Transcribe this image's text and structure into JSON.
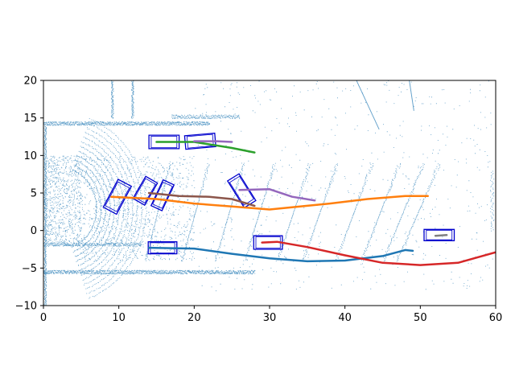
{
  "chart_data": {
    "type": "scatter",
    "title": "",
    "xlabel": "",
    "ylabel": "",
    "xlim": [
      0,
      60
    ],
    "ylim": [
      -10,
      20
    ],
    "x_ticks": [
      0,
      10,
      20,
      30,
      40,
      50,
      60
    ],
    "y_ticks": [
      -10,
      -5,
      0,
      5,
      10,
      15,
      20
    ],
    "grid": false,
    "legend": "none",
    "point_color": "#1f77b4",
    "box_color": "#0000cd",
    "point_clouds": {
      "near_fan_arcs": {
        "center": [
          2,
          3
        ],
        "radii_min": 5,
        "radii_max": 12,
        "step": 0.6
      },
      "wall_top": {
        "y": 14.3,
        "x_start": 0,
        "x_end": 22
      },
      "wall_upper": {
        "y": 15.2,
        "x_start": 17,
        "x_end": 26
      },
      "wall_bottom": {
        "y": -5.5,
        "x_start": 0,
        "x_end": 28
      },
      "wall_lower": {
        "y": -1.8,
        "x_start": 0,
        "x_end": 13
      },
      "pillars": [
        {
          "x": 9.1,
          "y_start": 15,
          "y_end": 20
        },
        {
          "x": 11.8,
          "y_start": 15,
          "y_end": 20
        },
        {
          "x": 0.2,
          "y_start": -10,
          "y_end": 14
        }
      ],
      "ground_stripes_x": [
        15,
        20,
        24.5,
        28.5,
        33,
        36.5,
        41,
        44.5,
        47.5,
        49.5
      ]
    },
    "boxes": [
      {
        "cx": 16,
        "cy": 11.8,
        "w": 4,
        "h": 1.8,
        "angle": 0
      },
      {
        "cx": 20.8,
        "cy": 11.9,
        "w": 4,
        "h": 1.8,
        "angle": 5
      },
      {
        "cx": 9.8,
        "cy": 4.5,
        "w": 4.2,
        "h": 2,
        "angle": 62
      },
      {
        "cx": 13.5,
        "cy": 5.3,
        "w": 3.4,
        "h": 1.8,
        "angle": 60
      },
      {
        "cx": 15.8,
        "cy": 4.7,
        "w": 3.8,
        "h": 1.6,
        "angle": 65
      },
      {
        "cx": 26.3,
        "cy": 5.3,
        "w": 4.2,
        "h": 1.8,
        "angle": -58
      },
      {
        "cx": 15.8,
        "cy": -2.3,
        "w": 3.8,
        "h": 1.6,
        "angle": 0
      },
      {
        "cx": 29.8,
        "cy": -1.6,
        "w": 3.8,
        "h": 1.8,
        "angle": 0
      },
      {
        "cx": 52.5,
        "cy": -0.6,
        "w": 4,
        "h": 1.5,
        "angle": 0
      }
    ],
    "series": [
      {
        "color": "#1f77b4",
        "points": [
          [
            14,
            -2.3
          ],
          [
            20,
            -2.4
          ],
          [
            25,
            -3.1
          ],
          [
            30,
            -3.7
          ],
          [
            35,
            -4.1
          ],
          [
            40,
            -4.0
          ],
          [
            45,
            -3.4
          ],
          [
            48,
            -2.6
          ],
          [
            49,
            -2.7
          ]
        ]
      },
      {
        "color": "#ff7f0e",
        "points": [
          [
            9,
            4.5
          ],
          [
            15,
            4.2
          ],
          [
            20,
            3.6
          ],
          [
            25,
            3.2
          ],
          [
            30,
            2.8
          ],
          [
            35,
            3.3
          ],
          [
            38,
            3.6
          ],
          [
            43,
            4.2
          ],
          [
            48,
            4.6
          ],
          [
            51,
            4.6
          ]
        ]
      },
      {
        "color": "#2ca02c",
        "points": [
          [
            15,
            11.8
          ],
          [
            20,
            11.8
          ],
          [
            25,
            11.0
          ],
          [
            28,
            10.4
          ]
        ]
      },
      {
        "color": "#d62728",
        "points": [
          [
            29,
            -1.6
          ],
          [
            31,
            -1.5
          ],
          [
            35,
            -2.2
          ],
          [
            40,
            -3.3
          ],
          [
            45,
            -4.3
          ],
          [
            50,
            -4.6
          ],
          [
            55,
            -4.3
          ],
          [
            60,
            -2.9
          ]
        ]
      },
      {
        "color": "#9467bd",
        "points": [
          [
            20,
            11.9
          ],
          [
            23,
            11.9
          ],
          [
            25,
            11.8
          ]
        ]
      },
      {
        "color": "#9467bd",
        "points": [
          [
            26,
            5.4
          ],
          [
            30,
            5.5
          ],
          [
            33,
            4.5
          ],
          [
            36,
            4.0
          ]
        ]
      },
      {
        "color": "#8c564b",
        "points": [
          [
            14,
            5.0
          ],
          [
            18,
            4.6
          ],
          [
            22,
            4.5
          ],
          [
            25,
            4.2
          ],
          [
            28,
            3.3
          ]
        ]
      },
      {
        "color": "#7f7f7f",
        "points": [
          [
            52,
            -0.7
          ],
          [
            53.5,
            -0.6
          ]
        ]
      }
    ]
  }
}
